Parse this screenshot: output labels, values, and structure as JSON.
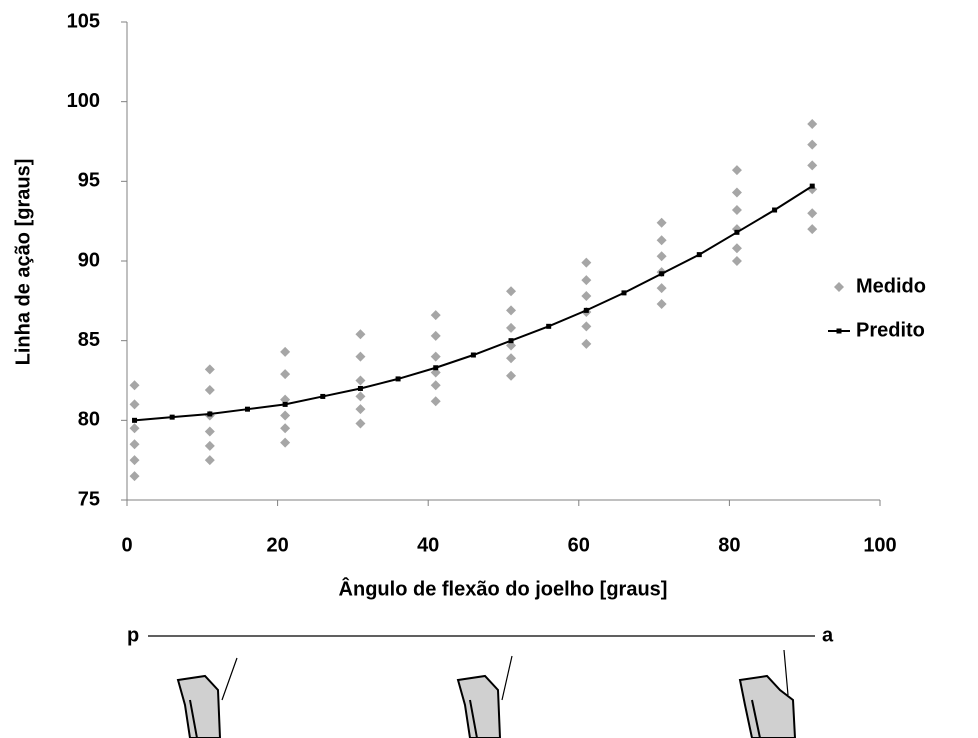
{
  "chart_data": {
    "type": "scatter",
    "x_label": "Ângulo de flexão do joelho [graus]",
    "y_label": "Linha de ação [graus]",
    "xlim": [
      0,
      100
    ],
    "xticks": [
      0,
      20,
      40,
      60,
      80,
      100
    ],
    "ylim": [
      75,
      105
    ],
    "yticks": [
      75,
      80,
      85,
      90,
      95,
      100,
      105
    ],
    "legend": "right",
    "series": [
      {
        "name": "Medido",
        "color": "#a6a6a6",
        "marker": "diamond",
        "x": [
          1,
          11,
          21,
          31,
          41,
          51,
          61,
          71,
          81,
          91,
          1,
          11,
          21,
          31,
          41,
          51,
          61,
          71,
          81,
          91,
          1,
          11,
          21,
          31,
          41,
          51,
          61,
          71,
          81,
          91,
          1,
          11,
          21,
          31,
          41,
          51,
          61,
          71,
          81,
          91,
          1,
          11,
          21,
          31,
          41,
          51,
          61,
          71,
          81,
          91,
          1,
          11,
          21,
          31,
          41,
          51,
          61,
          71,
          81,
          91
        ],
        "values": [
          76.5,
          77.5,
          78.6,
          79.8,
          81.2,
          82.8,
          84.8,
          87.3,
          90.0,
          92.0,
          77.5,
          78.4,
          79.5,
          80.7,
          82.2,
          83.9,
          85.9,
          88.3,
          90.8,
          93.0,
          78.5,
          79.3,
          80.3,
          81.5,
          83.0,
          84.7,
          86.8,
          89.3,
          92.0,
          94.5,
          79.5,
          80.3,
          81.3,
          82.5,
          84.0,
          85.8,
          87.8,
          90.3,
          93.2,
          96.0,
          81.0,
          81.9,
          82.9,
          84.0,
          85.3,
          86.9,
          88.8,
          91.3,
          94.3,
          97.3,
          82.2,
          83.2,
          84.3,
          85.4,
          86.6,
          88.1,
          89.9,
          92.4,
          95.7,
          98.6
        ]
      },
      {
        "name": "Predito",
        "color": "#000000",
        "marker": "square",
        "line": true,
        "x": [
          1,
          6,
          11,
          16,
          21,
          26,
          31,
          36,
          41,
          46,
          51,
          56,
          61,
          66,
          71,
          76,
          81,
          86,
          91
        ],
        "values": [
          80.0,
          80.2,
          80.4,
          80.7,
          81.0,
          81.5,
          82.0,
          82.6,
          83.3,
          84.1,
          85.0,
          85.9,
          86.9,
          88.0,
          89.2,
          90.4,
          91.8,
          93.2,
          94.7
        ]
      }
    ]
  },
  "diagram": {
    "left_label": "p",
    "right_label": "a"
  }
}
